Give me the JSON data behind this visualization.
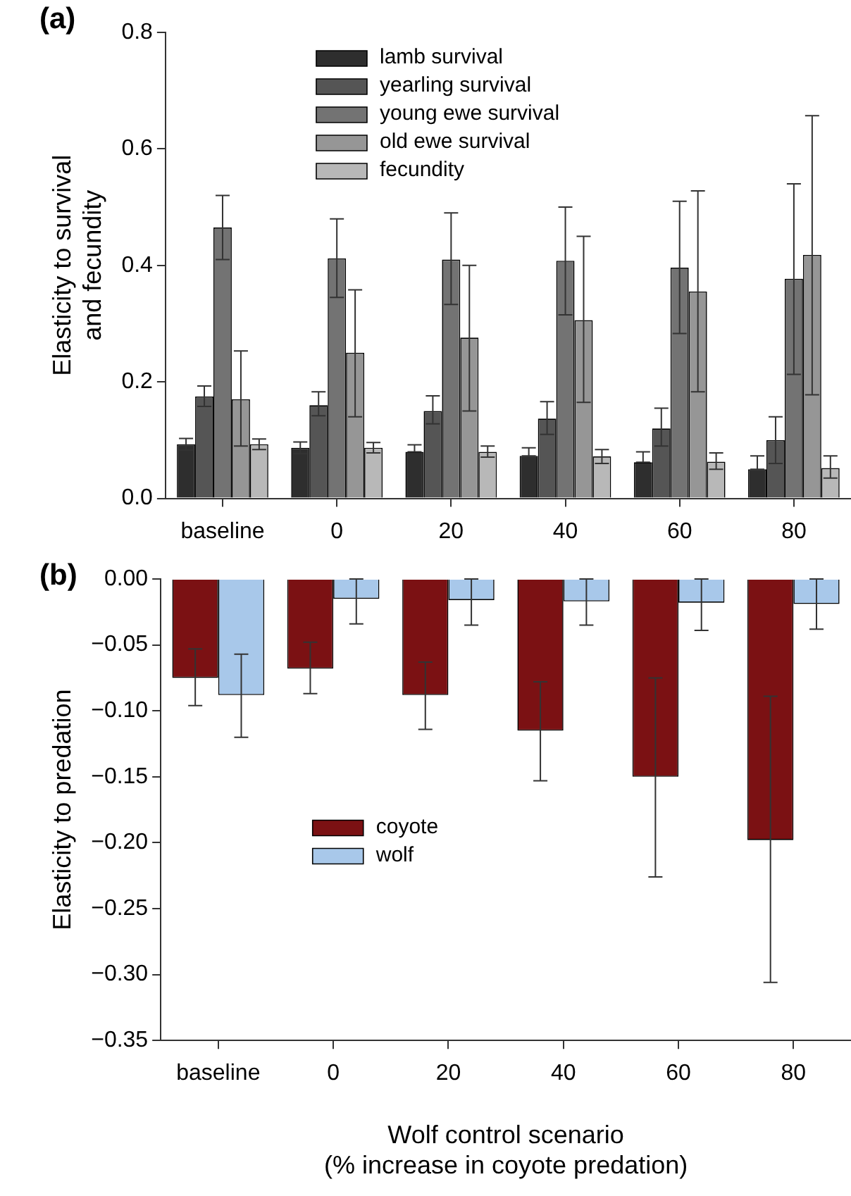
{
  "chart_data": [
    {
      "type": "bar",
      "title": "(a)",
      "ylabel": "Elasticity to survival\nand fecundity",
      "categories": [
        "baseline",
        "0",
        "20",
        "40",
        "60",
        "80"
      ],
      "series": [
        {
          "name": "lamb survival",
          "color": "#2e2e2e",
          "values": [
            0.093,
            0.087,
            0.08,
            0.073,
            0.062,
            0.05
          ],
          "errors": [
            [
              0.083,
              0.103
            ],
            [
              0.077,
              0.097
            ],
            [
              0.08,
              0.092
            ],
            [
              0.073,
              0.087
            ],
            [
              0.062,
              0.08
            ],
            [
              0.05,
              0.073
            ]
          ]
        },
        {
          "name": "yearling survival",
          "color": "#555555",
          "values": [
            0.175,
            0.16,
            0.15,
            0.137,
            0.12,
            0.1
          ],
          "errors": [
            [
              0.158,
              0.193
            ],
            [
              0.142,
              0.183
            ],
            [
              0.128,
              0.176
            ],
            [
              0.11,
              0.166
            ],
            [
              0.09,
              0.155
            ],
            [
              0.06,
              0.14
            ]
          ]
        },
        {
          "name": "young ewe survival",
          "color": "#737373",
          "values": [
            0.465,
            0.412,
            0.41,
            0.408,
            0.396,
            0.377
          ],
          "errors": [
            [
              0.41,
              0.52
            ],
            [
              0.345,
              0.48
            ],
            [
              0.333,
              0.49
            ],
            [
              0.315,
              0.5
            ],
            [
              0.283,
              0.51
            ],
            [
              0.213,
              0.54
            ]
          ]
        },
        {
          "name": "old ewe survival",
          "color": "#969696",
          "values": [
            0.17,
            0.25,
            0.276,
            0.306,
            0.355,
            0.418
          ],
          "errors": [
            [
              0.09,
              0.253
            ],
            [
              0.14,
              0.358
            ],
            [
              0.15,
              0.4
            ],
            [
              0.165,
              0.45
            ],
            [
              0.183,
              0.528
            ],
            [
              0.178,
              0.657
            ]
          ]
        },
        {
          "name": "fecundity",
          "color": "#b8b8b8",
          "values": [
            0.093,
            0.087,
            0.08,
            0.072,
            0.063,
            0.052
          ],
          "errors": [
            [
              0.084,
              0.102
            ],
            [
              0.078,
              0.096
            ],
            [
              0.071,
              0.09
            ],
            [
              0.06,
              0.084
            ],
            [
              0.05,
              0.078
            ],
            [
              0.035,
              0.073
            ]
          ]
        }
      ],
      "ylim": [
        0,
        0.8
      ],
      "yticks": [
        {
          "value": 0,
          "label": "0.0"
        },
        0.2,
        0.4,
        0.6,
        0.8
      ],
      "grid": false,
      "legend": "top left"
    },
    {
      "type": "bar",
      "title": "(b)",
      "ylabel": "Elasticity to predation",
      "xlabel": "Wolf control scenario\n(% increase in coyote predation)",
      "categories": [
        "baseline",
        "0",
        "20",
        "40",
        "60",
        "80"
      ],
      "series": [
        {
          "name": "coyote",
          "color": "#7b1113",
          "values": [
            -0.075,
            -0.068,
            -0.088,
            -0.115,
            -0.15,
            -0.198
          ],
          "errors": [
            [
              -0.096,
              -0.053
            ],
            [
              -0.087,
              -0.048
            ],
            [
              -0.114,
              -0.063
            ],
            [
              -0.153,
              -0.078
            ],
            [
              -0.226,
              -0.075
            ],
            [
              -0.306,
              -0.089
            ]
          ]
        },
        {
          "name": "wolf",
          "color": "#a8c8ea",
          "values": [
            -0.088,
            -0.015,
            -0.016,
            -0.017,
            -0.018,
            -0.019
          ],
          "errors": [
            [
              -0.12,
              -0.057
            ],
            [
              -0.034,
              0
            ],
            [
              -0.035,
              0
            ],
            [
              -0.035,
              0
            ],
            [
              -0.039,
              0
            ],
            [
              -0.038,
              0
            ]
          ]
        }
      ],
      "ylim": [
        -0.35,
        0
      ],
      "yticks": [
        {
          "value": 0,
          "label": "0.00"
        },
        {
          "value": -0.05,
          "label": "−0.05"
        },
        {
          "value": -0.1,
          "label": "−0.10"
        },
        {
          "value": -0.15,
          "label": "−0.15"
        },
        {
          "value": -0.2,
          "label": "−0.20"
        },
        {
          "value": -0.25,
          "label": "−0.25"
        },
        {
          "value": -0.3,
          "label": "−0.30"
        },
        {
          "value": -0.35,
          "label": "−0.35"
        }
      ],
      "grid": false,
      "legend": "bottom left"
    }
  ]
}
